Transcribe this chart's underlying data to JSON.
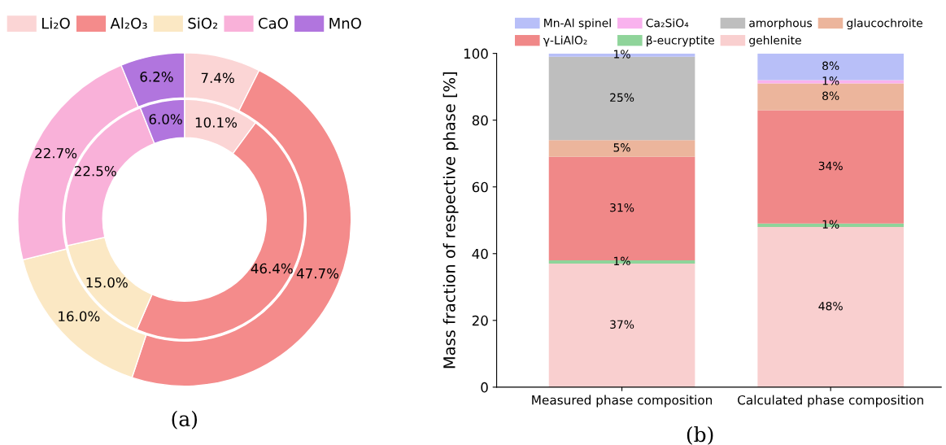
{
  "chart_data": [
    {
      "type": "donut",
      "categories": [
        "Li₂O",
        "Al₂O₃",
        "SiO₂",
        "CaO",
        "MnO"
      ],
      "colors": [
        "#fbd5d5",
        "#f48b8b",
        "#fbe8c4",
        "#f9b1d9",
        "#b175de"
      ],
      "legend": "top",
      "annotations": [
        "(a)"
      ],
      "series": [
        {
          "values": [
            7.4,
            47.7,
            16.0,
            22.7,
            6.2
          ],
          "value_labels": [
            "7.4%",
            "47.7%",
            "16.0%",
            "22.7%",
            "6.2%"
          ]
        },
        {
          "values": [
            10.1,
            46.4,
            15.0,
            22.5,
            6.0
          ],
          "value_labels": [
            "10.1%",
            "46.4%",
            "15.0%",
            "22.5%",
            "6.0%"
          ]
        }
      ]
    },
    {
      "type": "bar",
      "stacked": true,
      "categories": [
        "Measured phase composition",
        "Calculated phase composition"
      ],
      "ylabel": "Mass fraction of respective phase [%]",
      "ylim": [
        0,
        100
      ],
      "yticks": [
        0,
        20,
        40,
        60,
        80,
        100
      ],
      "grid": false,
      "legend": "top",
      "annotations": [
        "(b)"
      ],
      "series": [
        {
          "name": "gehlenite",
          "color": "#f9cfcf",
          "values": [
            37,
            48
          ],
          "value_labels": [
            "37%",
            "48%"
          ]
        },
        {
          "name": "β-eucryptite",
          "color": "#8fd49a",
          "values": [
            1,
            1
          ],
          "value_labels": [
            "1%",
            "1%"
          ]
        },
        {
          "name": "γ-LiAlO₂",
          "color": "#f08888",
          "values": [
            31,
            34
          ],
          "value_labels": [
            "31%",
            "34%"
          ]
        },
        {
          "name": "glaucochroite",
          "color": "#ecb59c",
          "values": [
            5,
            8
          ],
          "value_labels": [
            "5%",
            "8%"
          ]
        },
        {
          "name": "amorphous",
          "color": "#bebebe",
          "values": [
            25,
            null
          ],
          "value_labels": [
            "25%",
            null
          ]
        },
        {
          "name": "Ca₂SiO₄",
          "color": "#f9b2ee",
          "values": [
            null,
            1
          ],
          "value_labels": [
            null,
            "1%"
          ]
        },
        {
          "name": "Mn-Al spinel",
          "color": "#b8bff8",
          "values": [
            1,
            8
          ],
          "value_labels": [
            "1%",
            "8%"
          ]
        }
      ]
    }
  ]
}
